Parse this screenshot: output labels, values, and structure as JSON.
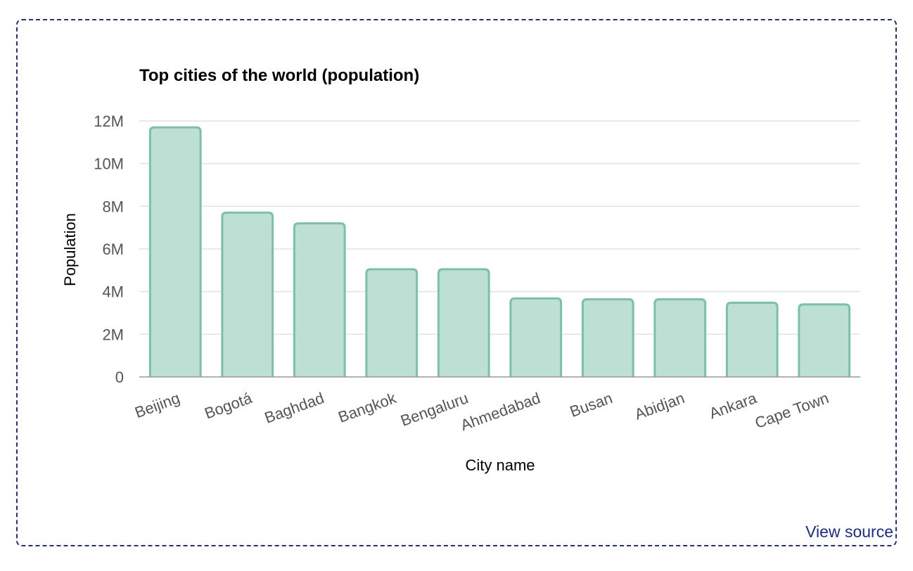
{
  "link": {
    "view_source": "View source"
  },
  "colors": {
    "bar_fill": "#bddfd4",
    "bar_stroke": "#7cc0a8",
    "frame_border": "#26336b",
    "link": "#1f2d7a",
    "grid": "#e2e2e2",
    "axis": "#999999"
  },
  "chart_data": {
    "type": "bar",
    "title": "Top cities of the world (population)",
    "xlabel": "City name",
    "ylabel": "Population",
    "categories": [
      "Beijing",
      "Bogotá",
      "Baghdad",
      "Bangkok",
      "Bengaluru",
      "Ahmedabad",
      "Busan",
      "Abidjan",
      "Ankara",
      "Cape Town"
    ],
    "values": [
      11700000,
      7700000,
      7200000,
      5050000,
      5050000,
      3680000,
      3640000,
      3640000,
      3480000,
      3400000
    ],
    "ylim": [
      0,
      12000000
    ],
    "yticks": [
      0,
      2000000,
      4000000,
      6000000,
      8000000,
      10000000,
      12000000
    ],
    "ytick_labels": [
      "0",
      "2M",
      "4M",
      "6M",
      "8M",
      "10M",
      "12M"
    ],
    "grid": true,
    "legend": "none"
  }
}
